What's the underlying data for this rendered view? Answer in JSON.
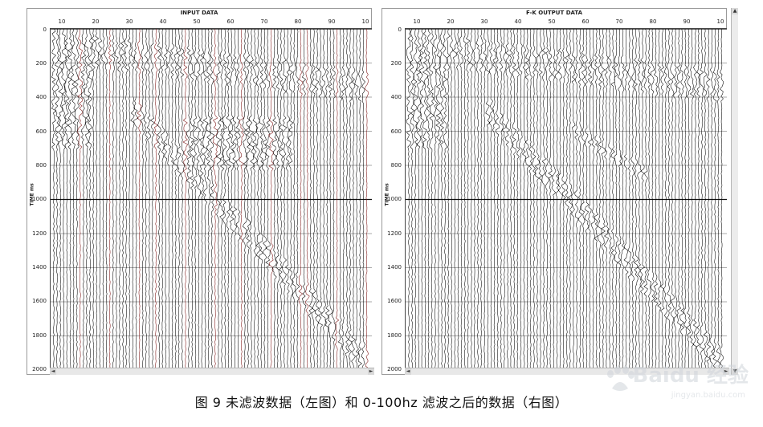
{
  "panels": [
    {
      "id": "left",
      "title": "INPUT DATA",
      "x_ticks": [
        "10",
        "20",
        "30",
        "40",
        "50",
        "60",
        "70",
        "80",
        "90",
        "10"
      ],
      "y_ticks": [
        "0",
        "200",
        "400",
        "600",
        "800",
        "1000",
        "1200",
        "1400",
        "1600",
        "1800",
        "2000"
      ],
      "y_axis_label": "TIME ms",
      "scroll_left": "◄",
      "scroll_right": "►"
    },
    {
      "id": "right",
      "title": "F-K OUTPUT DATA",
      "x_ticks": [
        "10",
        "20",
        "30",
        "40",
        "50",
        "60",
        "70",
        "80",
        "90",
        "10"
      ],
      "y_ticks": [
        "0",
        "200",
        "400",
        "600",
        "800",
        "1000",
        "1200",
        "1400",
        "1600",
        "1800",
        "2000"
      ],
      "y_axis_label": "TIME ms",
      "scroll_left": "◄",
      "scroll_right": "►"
    }
  ],
  "vscroll": {
    "up": "▲",
    "down": "▼"
  },
  "caption": "图 9 未滤波数据（左图）和 0-100hz 滤波之后的数据（右图）",
  "watermark": {
    "brand": "Baidu 经验",
    "url": "jingyan.baidu.com"
  },
  "colors": {
    "trace": "#000000",
    "noise": "#7a1010",
    "grid": "#222222"
  }
}
